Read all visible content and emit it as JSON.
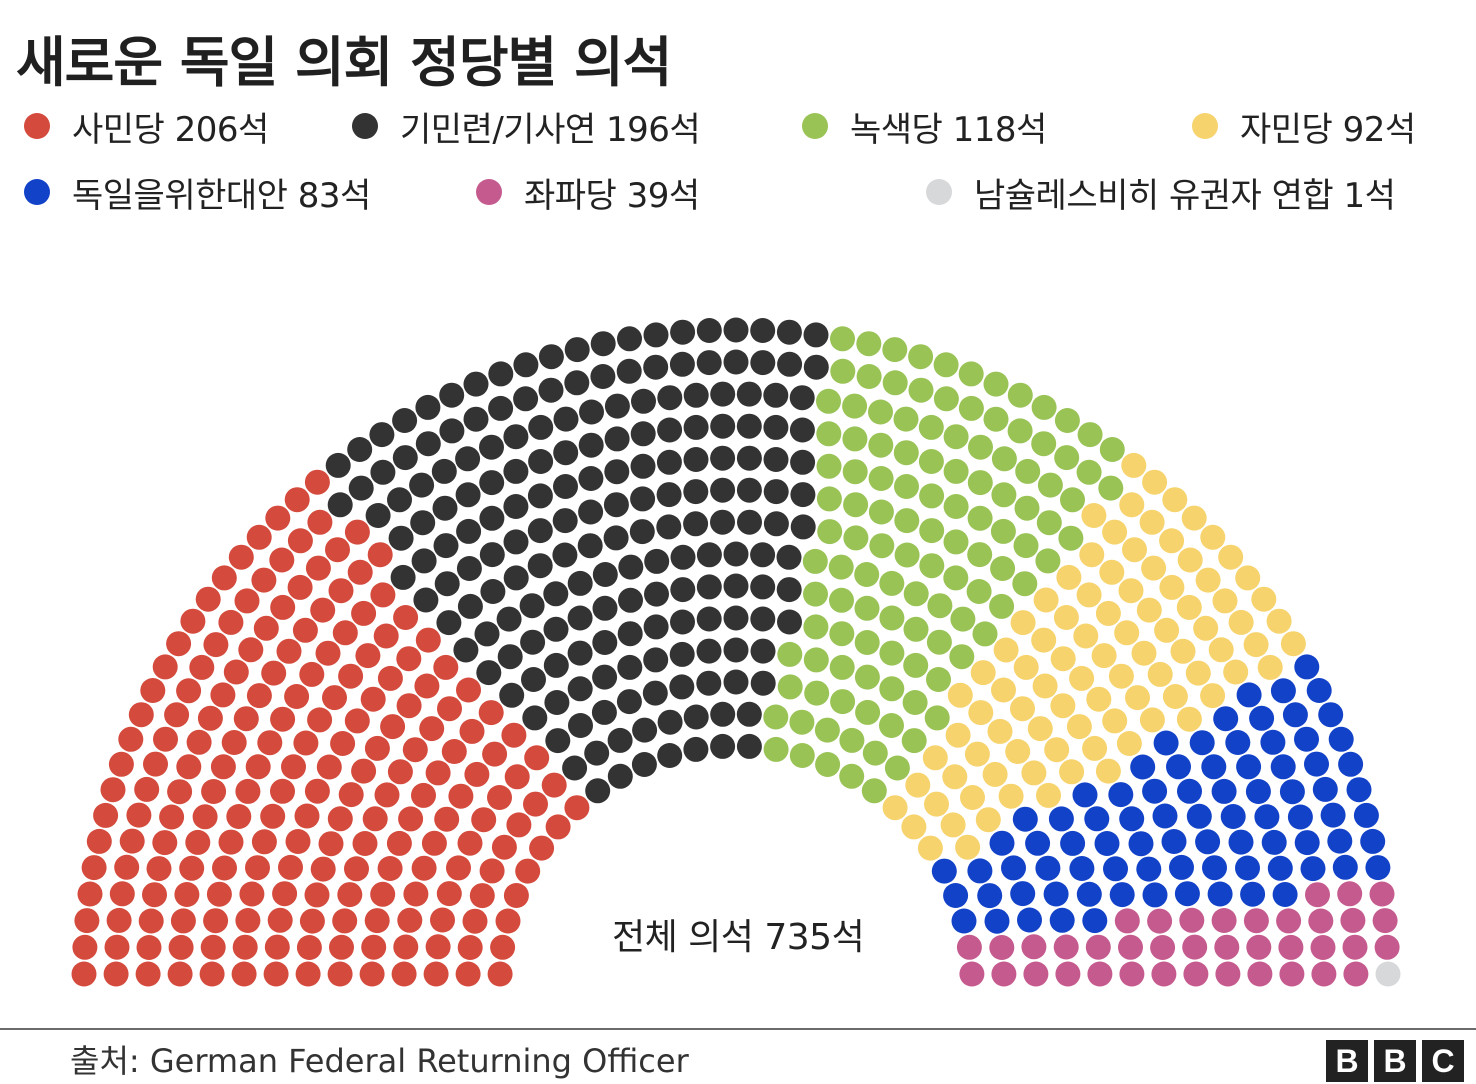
{
  "header": {
    "title": "새로운 독일 의회 정당별 의석"
  },
  "chart_data": {
    "type": "parliament",
    "total_label": "전체 의석 735석",
    "total_seats": 735,
    "rows": 14,
    "series": [
      {
        "name": "사민당",
        "label": "사민당 206석",
        "value": 206,
        "color": "#d44a3c"
      },
      {
        "name": "기민련/기사연",
        "label": "기민련/기사연 196석",
        "value": 196,
        "color": "#333333"
      },
      {
        "name": "녹색당",
        "label": "녹색당 118석",
        "value": 118,
        "color": "#9ac356"
      },
      {
        "name": "자민당",
        "label": "자민당 92석",
        "value": 92,
        "color": "#f6d36c"
      },
      {
        "name": "독일을위한대안",
        "label": "독일을위한대안 83석",
        "value": 83,
        "color": "#1142c8"
      },
      {
        "name": "좌파당",
        "label": "좌파당 39석",
        "value": 39,
        "color": "#c55a8e"
      },
      {
        "name": "남슐레스비히 유권자 연합",
        "label": "남슐레스비히 유권자 연합 1석",
        "value": 1,
        "color": "#d7d8da"
      }
    ]
  },
  "footer": {
    "source": "출처: German Federal Returning Officer",
    "logo_letters": [
      "B",
      "B",
      "C"
    ]
  }
}
